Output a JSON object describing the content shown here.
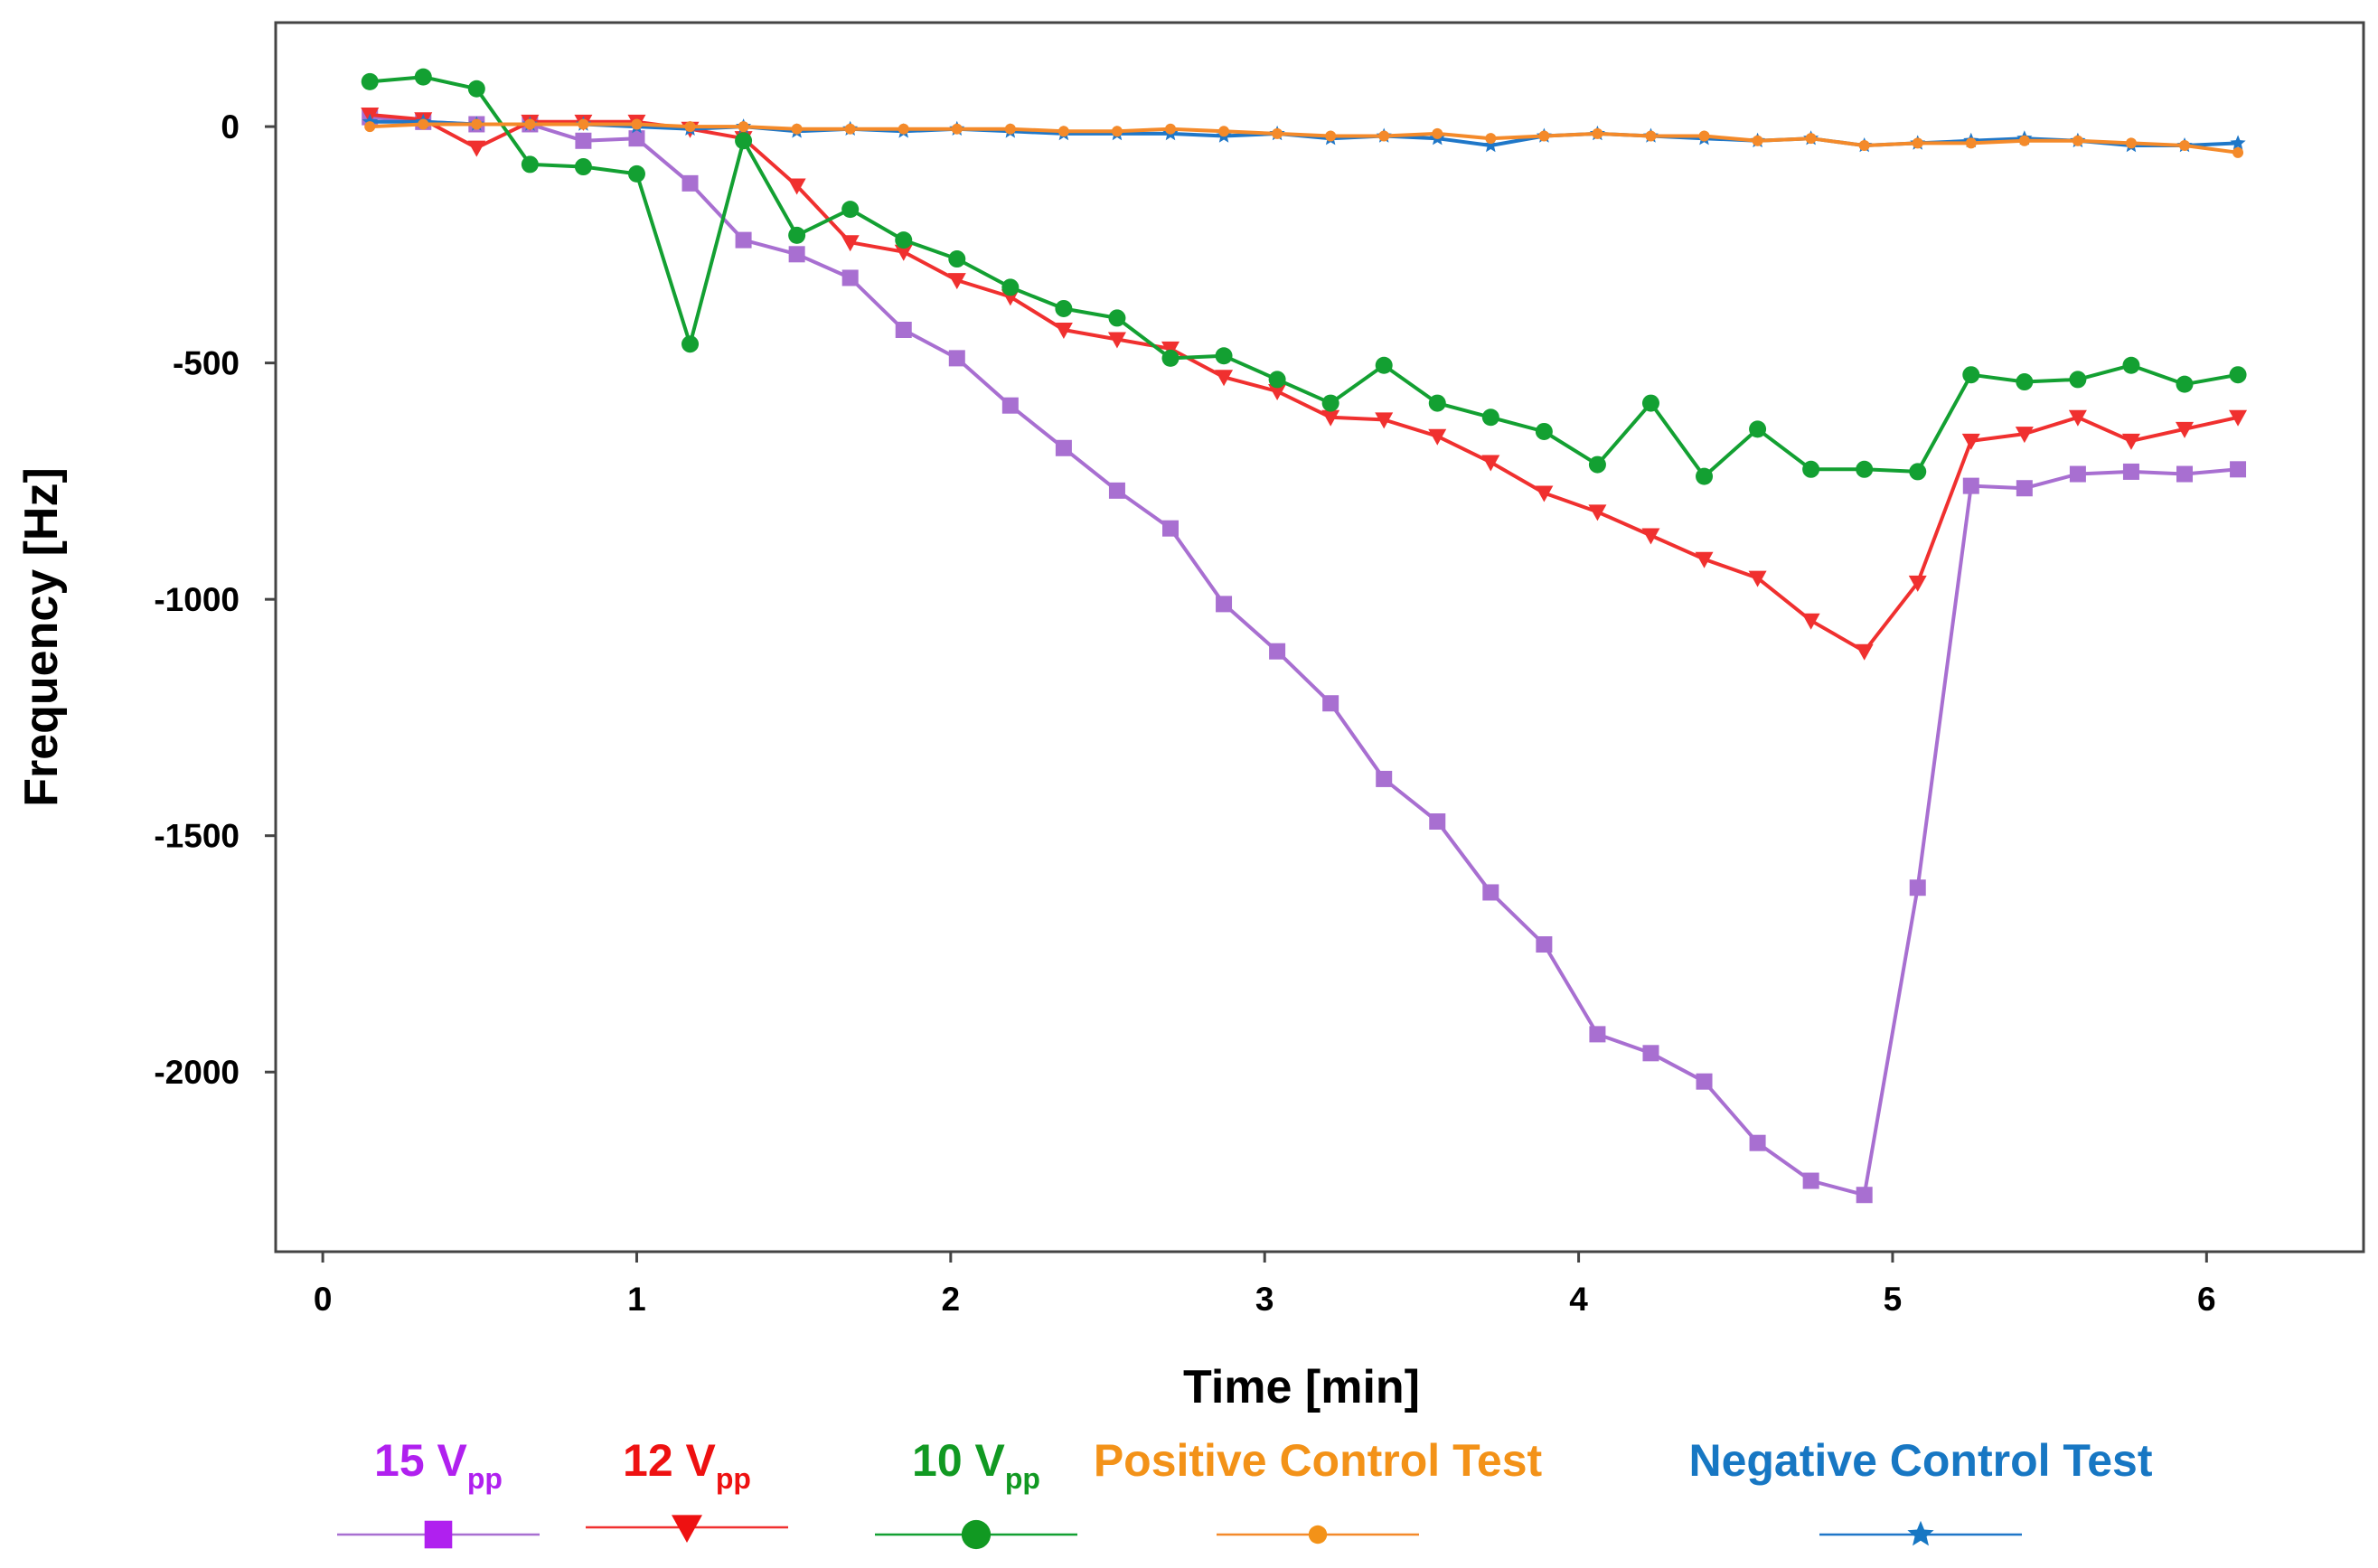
{
  "chart_data": {
    "type": "line",
    "title": "",
    "xlabel": "Time [min]",
    "ylabel": "Frequency [Hz]",
    "xlim": [
      -0.15,
      6.5
    ],
    "ylim": [
      -2380,
      220
    ],
    "xticks": [
      0,
      1,
      2,
      3,
      4,
      5,
      6
    ],
    "xtick_labels": [
      "0",
      "1",
      "2",
      "3",
      "4",
      "5",
      "6"
    ],
    "yticks": [
      0,
      -500,
      -1000,
      -1500,
      -2000
    ],
    "ytick_labels": [
      "0",
      "-500",
      "-1000",
      "-1500",
      "-2000"
    ],
    "grid": false,
    "legend_position": "bottom",
    "x": [
      0.15,
      0.32,
      0.49,
      0.66,
      0.83,
      1.0,
      1.17,
      1.34,
      1.51,
      1.68,
      1.85,
      2.02,
      2.19,
      2.36,
      2.53,
      2.7,
      2.87,
      3.04,
      3.21,
      3.38,
      3.55,
      3.72,
      3.89,
      4.06,
      4.23,
      4.4,
      4.57,
      4.74,
      4.91,
      5.08,
      5.25,
      5.42,
      5.59,
      5.76,
      5.93,
      6.1
    ],
    "series": [
      {
        "name": "15 Vpp",
        "label_main": "15 V",
        "label_sub": "pp",
        "color": "#a86fd1",
        "legend_color": "#b020ef",
        "marker": "square",
        "values": [
          20,
          10,
          5,
          5,
          -30,
          -25,
          -120,
          -240,
          -270,
          -320,
          -430,
          -490,
          -590,
          -680,
          -770,
          -850,
          -1010,
          -1110,
          -1220,
          -1380,
          -1470,
          -1620,
          -1730,
          -1920,
          -1960,
          -2020,
          -2150,
          -2230,
          -2260,
          -1610,
          -760,
          -765,
          -735,
          -730,
          -735,
          -725
        ]
      },
      {
        "name": "12 Vpp",
        "label_main": "12 V",
        "label_sub": "pp",
        "color": "#f0302f",
        "legend_color": "#ee1111",
        "marker": "triangle-down",
        "values": [
          25,
          15,
          -45,
          10,
          10,
          10,
          -5,
          -25,
          -125,
          -245,
          -265,
          -325,
          -360,
          -430,
          -450,
          -470,
          -530,
          -560,
          -615,
          -620,
          -655,
          -710,
          -775,
          -815,
          -865,
          -915,
          -955,
          -1045,
          -1110,
          -965,
          -665,
          -650,
          -615,
          -665,
          -640,
          -615
        ]
      },
      {
        "name": "10 Vpp",
        "label_main": "10 V",
        "label_sub": "pp",
        "color": "#13a032",
        "legend_color": "#119922",
        "marker": "circle",
        "values": [
          95,
          105,
          80,
          -80,
          -85,
          -100,
          -460,
          -30,
          -230,
          -175,
          -240,
          -280,
          -340,
          -385,
          -405,
          -490,
          -485,
          -535,
          -585,
          -505,
          -585,
          -615,
          -645,
          -715,
          -585,
          -740,
          -640,
          -725,
          -725,
          -730,
          -525,
          -540,
          -535,
          -505,
          -545,
          -525
        ]
      },
      {
        "name": "Positive Control Test",
        "label_main": "Positive Control Test",
        "label_sub": "",
        "color": "#f48a2a",
        "legend_color": "#f39218",
        "marker": "small-circle",
        "values": [
          0,
          5,
          5,
          5,
          5,
          5,
          0,
          0,
          -5,
          -5,
          -5,
          -5,
          -5,
          -10,
          -10,
          -5,
          -10,
          -15,
          -20,
          -20,
          -15,
          -25,
          -20,
          -15,
          -20,
          -20,
          -30,
          -25,
          -40,
          -35,
          -35,
          -30,
          -30,
          -35,
          -40,
          -55
        ]
      },
      {
        "name": "Negative Control Test",
        "label_main": "Negative Control Test",
        "label_sub": "",
        "color": "#1f77c8",
        "legend_color": "#1777c3",
        "marker": "star",
        "values": [
          10,
          10,
          5,
          5,
          5,
          0,
          -5,
          0,
          -10,
          -5,
          -10,
          -5,
          -10,
          -15,
          -15,
          -15,
          -20,
          -15,
          -25,
          -20,
          -25,
          -40,
          -20,
          -15,
          -20,
          -25,
          -30,
          -25,
          -40,
          -35,
          -30,
          -25,
          -30,
          -40,
          -40,
          -35
        ]
      }
    ]
  }
}
